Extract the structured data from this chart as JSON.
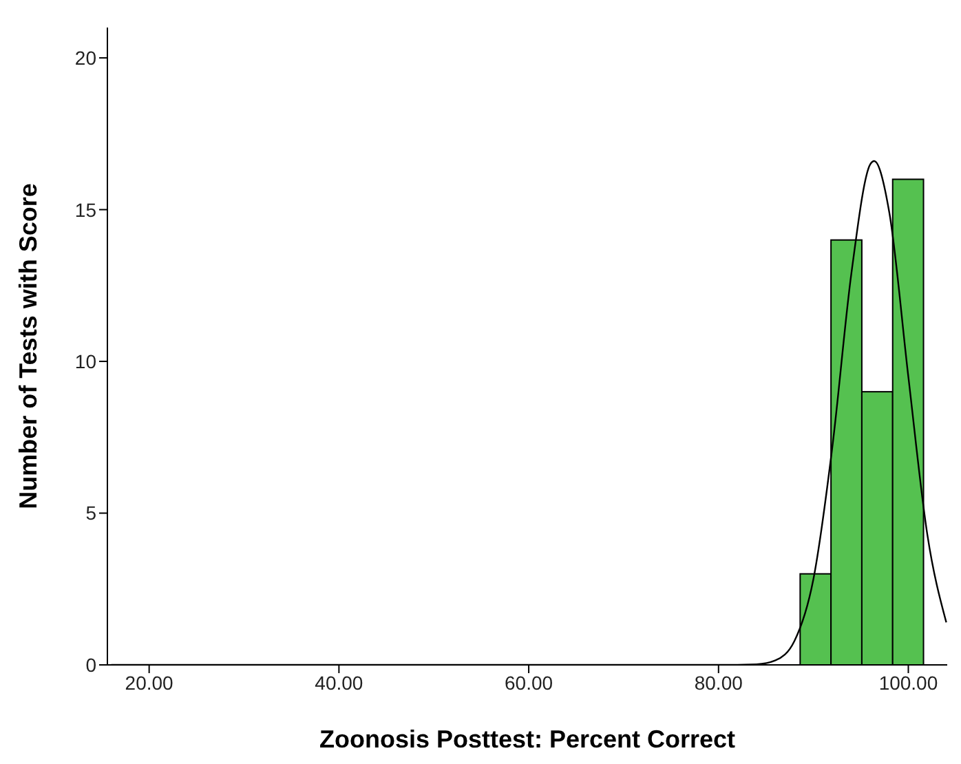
{
  "chart_data": {
    "type": "histogram",
    "xlabel": "Zoonosis Posttest: Percent Correct",
    "ylabel": "Number of Tests with Score",
    "bins": [
      88.6,
      91.85,
      95.1,
      98.35,
      101.6
    ],
    "values": [
      3,
      14,
      9,
      16
    ],
    "color": "#55c150",
    "series": [
      {
        "type": "line",
        "color": "#000000",
        "x": [
          16,
          40,
          60,
          80,
          84,
          86,
          88,
          90,
          92,
          94,
          96,
          96.4,
          98,
          100,
          102,
          104
        ],
        "values": [
          0,
          0,
          0,
          0,
          0.02,
          0.15,
          0.79,
          2.83,
          7.2,
          12.9,
          16.5,
          16.6,
          14.9,
          9.5,
          4.3,
          1.4
        ]
      }
    ],
    "xlim": [
      15.6,
      104.1
    ],
    "xticks": [
      {
        "value": 20,
        "label": "20.00"
      },
      {
        "value": 40,
        "label": "40.00"
      },
      {
        "value": 60,
        "label": "60.00"
      },
      {
        "value": 80,
        "label": "80.00"
      },
      {
        "value": 100,
        "label": "100.00"
      }
    ],
    "ylim": [
      0,
      21
    ],
    "yticks": [
      0,
      5,
      10,
      15,
      20
    ],
    "grid": false,
    "legend": false,
    "marker": "none"
  }
}
